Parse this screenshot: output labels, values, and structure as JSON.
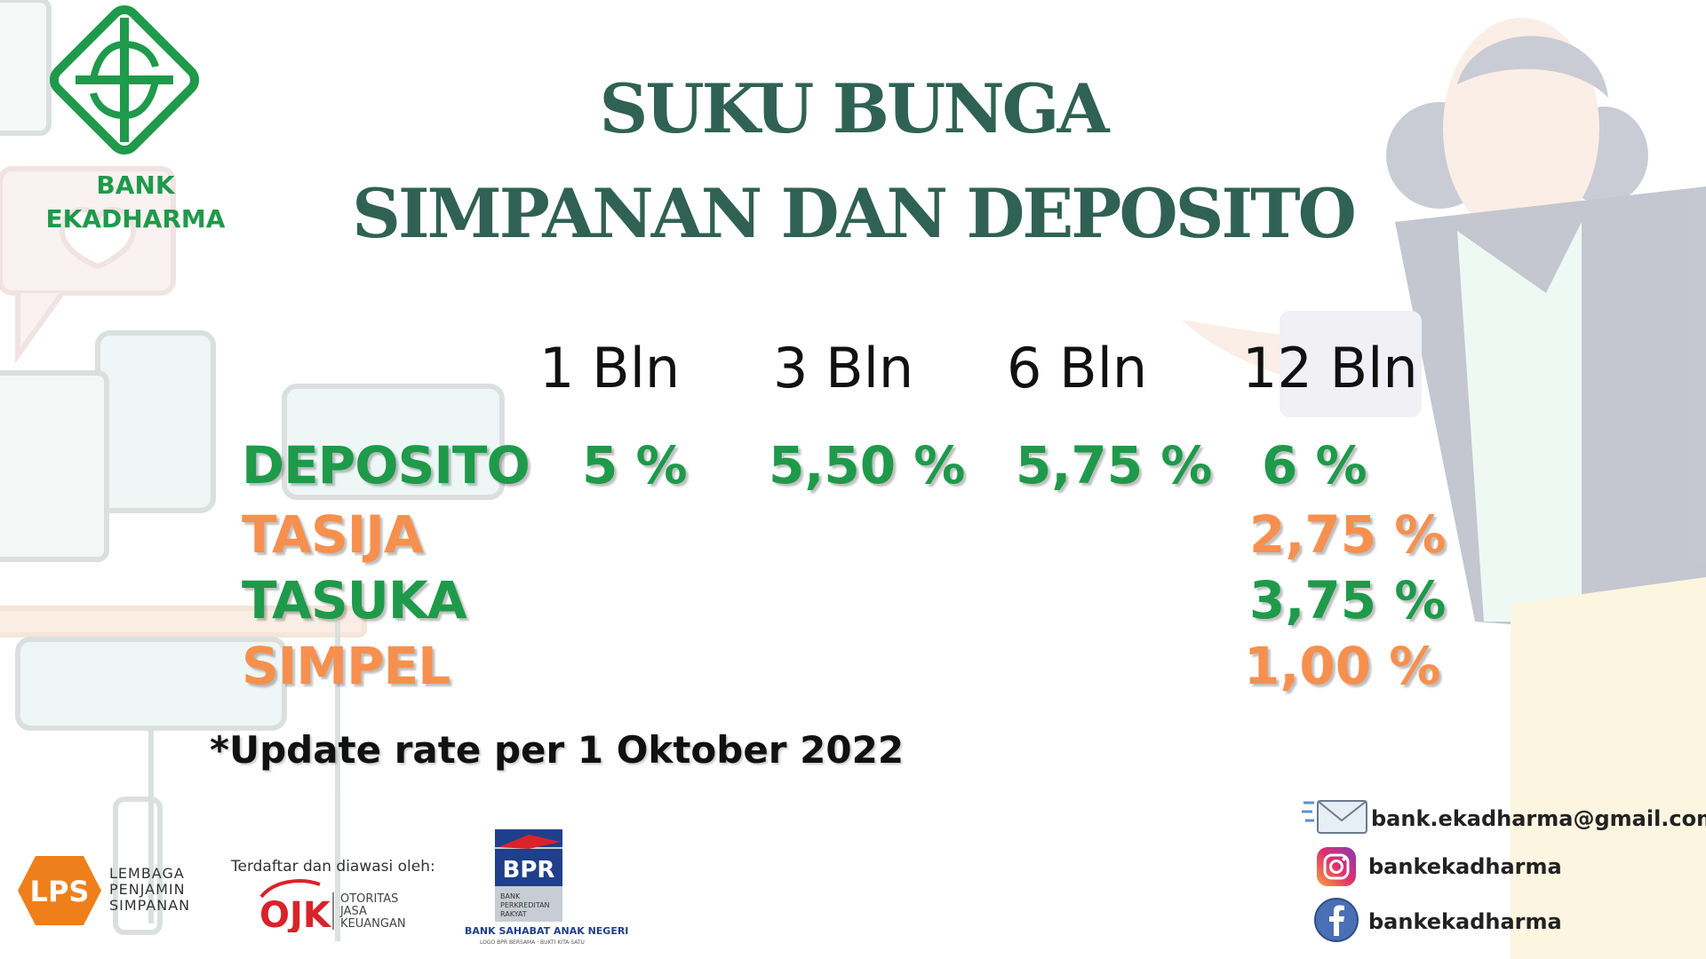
{
  "brand": {
    "line1": "BANK",
    "line2": "EKADHARMA",
    "color": "#1e9a4a"
  },
  "title": {
    "line1": "SUKU BUNGA",
    "line2": "SIMPANAN DAN DEPOSITO",
    "color": "#2f6252"
  },
  "table": {
    "headers": [
      "1 Bln",
      "3 Bln",
      "6 Bln",
      "12 Bln"
    ],
    "rows": [
      {
        "label": "DEPOSITO",
        "values": [
          "5  %",
          "5,50 %",
          "5,75 %",
          "6 %"
        ],
        "color": "#1e9a4a"
      },
      {
        "label": "TASIJA",
        "value_12": "2,75 %",
        "color": "#f7904e"
      },
      {
        "label": "TASUKA",
        "value_12": "3,75 %",
        "color": "#1e9a4a"
      },
      {
        "label": "SIMPEL",
        "value_12": "1,00 %",
        "color": "#f7904e"
      }
    ]
  },
  "note": "*Update rate per 1 Oktober 2022",
  "contacts": {
    "email": "bank.ekadharma@gmail.com",
    "instagram": "bankekadharma",
    "facebook": "bankekadharma"
  },
  "footer": {
    "lps_logo_text": "LPS",
    "lps_line1": "LEMBAGA",
    "lps_line2": "PENJAMIN",
    "lps_line3": "SIMPANAN",
    "ojk_caption": "Terdaftar dan diawasi oleh:",
    "ojk_logo_text": "OJK",
    "ojk_line1": "OTORITAS",
    "ojk_line2": "JASA",
    "ojk_line3": "KEUANGAN",
    "bpr_logo_text": "BPR",
    "bpr_line1": "BANK",
    "bpr_line2": "PERKREDITAN",
    "bpr_line3": "RAKYAT",
    "bpr_tagline": "BANK SAHABAT ANAK NEGERI",
    "bpr_subtagline": "LOGO BPR BERSAMA · BUKTI KITA SATU"
  },
  "icons": {
    "email": "envelope-icon",
    "instagram": "instagram-icon",
    "facebook": "facebook-icon"
  }
}
